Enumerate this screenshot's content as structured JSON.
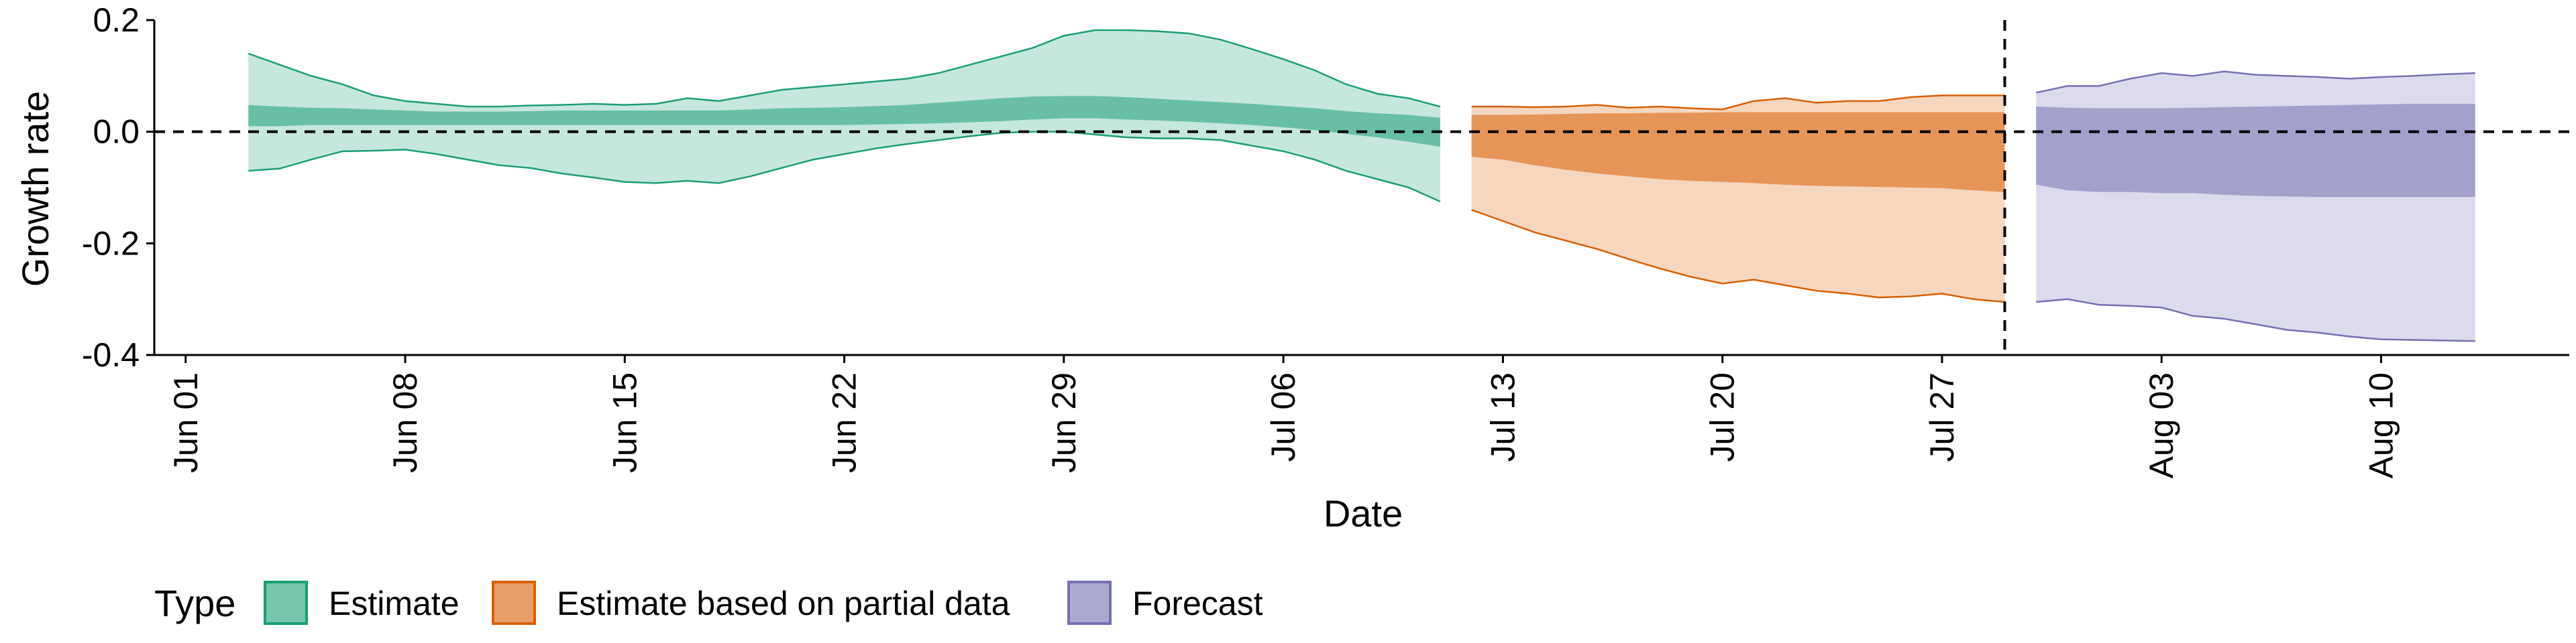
{
  "chart_data": {
    "type": "area",
    "xlabel": "Date",
    "ylabel": "Growth rate",
    "ylim": [
      -0.4,
      0.2
    ],
    "yticks": [
      {
        "value": -0.4,
        "label": "-0.4"
      },
      {
        "value": -0.2,
        "label": "-0.2"
      },
      {
        "value": 0.0,
        "label": "0.0"
      },
      {
        "value": 0.2,
        "label": "0.2"
      }
    ],
    "xticks": [
      {
        "date": "2020-06-01",
        "label": "Jun 01"
      },
      {
        "date": "2020-06-08",
        "label": "Jun 08"
      },
      {
        "date": "2020-06-15",
        "label": "Jun 15"
      },
      {
        "date": "2020-06-22",
        "label": "Jun 22"
      },
      {
        "date": "2020-06-29",
        "label": "Jun 29"
      },
      {
        "date": "2020-07-06",
        "label": "Jul 06"
      },
      {
        "date": "2020-07-13",
        "label": "Jul 13"
      },
      {
        "date": "2020-07-20",
        "label": "Jul 20"
      },
      {
        "date": "2020-07-27",
        "label": "Jul 27"
      },
      {
        "date": "2020-08-03",
        "label": "Aug 03"
      },
      {
        "date": "2020-08-10",
        "label": "Aug 10"
      }
    ],
    "xlim": [
      "2020-05-31",
      "2020-08-16"
    ],
    "hline": 0.0,
    "vline": "2020-07-29",
    "grid": false,
    "legend": {
      "title": "Type",
      "position": "bottom-left"
    },
    "series": [
      {
        "name": "Estimate",
        "color": "#1b9e77",
        "points": [
          {
            "date": "2020-06-03",
            "lower90": -0.07,
            "lower50": 0.01,
            "upper50": 0.048,
            "upper90": 0.14
          },
          {
            "date": "2020-06-04",
            "lower90": -0.066,
            "lower50": 0.01,
            "upper50": 0.045,
            "upper90": 0.12
          },
          {
            "date": "2020-06-05",
            "lower90": -0.05,
            "lower50": 0.012,
            "upper50": 0.043,
            "upper90": 0.1
          },
          {
            "date": "2020-06-06",
            "lower90": -0.035,
            "lower50": 0.012,
            "upper50": 0.042,
            "upper90": 0.085
          },
          {
            "date": "2020-06-07",
            "lower90": -0.034,
            "lower50": 0.012,
            "upper50": 0.04,
            "upper90": 0.065
          },
          {
            "date": "2020-06-08",
            "lower90": -0.032,
            "lower50": 0.012,
            "upper50": 0.038,
            "upper90": 0.055
          },
          {
            "date": "2020-06-09",
            "lower90": -0.04,
            "lower50": 0.012,
            "upper50": 0.036,
            "upper90": 0.05
          },
          {
            "date": "2020-06-10",
            "lower90": -0.05,
            "lower50": 0.012,
            "upper50": 0.036,
            "upper90": 0.045
          },
          {
            "date": "2020-06-11",
            "lower90": -0.06,
            "lower50": 0.012,
            "upper50": 0.036,
            "upper90": 0.045
          },
          {
            "date": "2020-06-12",
            "lower90": -0.065,
            "lower50": 0.012,
            "upper50": 0.037,
            "upper90": 0.047
          },
          {
            "date": "2020-06-13",
            "lower90": -0.075,
            "lower50": 0.012,
            "upper50": 0.038,
            "upper90": 0.048
          },
          {
            "date": "2020-06-14",
            "lower90": -0.082,
            "lower50": 0.012,
            "upper50": 0.038,
            "upper90": 0.05
          },
          {
            "date": "2020-06-15",
            "lower90": -0.09,
            "lower50": 0.012,
            "upper50": 0.038,
            "upper90": 0.048
          },
          {
            "date": "2020-06-16",
            "lower90": -0.092,
            "lower50": 0.012,
            "upper50": 0.038,
            "upper90": 0.05
          },
          {
            "date": "2020-06-17",
            "lower90": -0.088,
            "lower50": 0.012,
            "upper50": 0.038,
            "upper90": 0.06
          },
          {
            "date": "2020-06-18",
            "lower90": -0.092,
            "lower50": 0.012,
            "upper50": 0.038,
            "upper90": 0.055
          },
          {
            "date": "2020-06-19",
            "lower90": -0.08,
            "lower50": 0.012,
            "upper50": 0.04,
            "upper90": 0.065
          },
          {
            "date": "2020-06-20",
            "lower90": -0.065,
            "lower50": 0.012,
            "upper50": 0.042,
            "upper90": 0.075
          },
          {
            "date": "2020-06-21",
            "lower90": -0.05,
            "lower50": 0.012,
            "upper50": 0.043,
            "upper90": 0.08
          },
          {
            "date": "2020-06-22",
            "lower90": -0.04,
            "lower50": 0.012,
            "upper50": 0.044,
            "upper90": 0.085
          },
          {
            "date": "2020-06-23",
            "lower90": -0.03,
            "lower50": 0.013,
            "upper50": 0.046,
            "upper90": 0.09
          },
          {
            "date": "2020-06-24",
            "lower90": -0.022,
            "lower50": 0.014,
            "upper50": 0.048,
            "upper90": 0.095
          },
          {
            "date": "2020-06-25",
            "lower90": -0.015,
            "lower50": 0.015,
            "upper50": 0.052,
            "upper90": 0.105
          },
          {
            "date": "2020-06-26",
            "lower90": -0.008,
            "lower50": 0.017,
            "upper50": 0.056,
            "upper90": 0.12
          },
          {
            "date": "2020-06-27",
            "lower90": -0.002,
            "lower50": 0.019,
            "upper50": 0.06,
            "upper90": 0.135
          },
          {
            "date": "2020-06-28",
            "lower90": 0.0,
            "lower50": 0.022,
            "upper50": 0.063,
            "upper90": 0.15
          },
          {
            "date": "2020-06-29",
            "lower90": 0.0,
            "lower50": 0.024,
            "upper50": 0.064,
            "upper90": 0.172
          },
          {
            "date": "2020-06-30",
            "lower90": -0.005,
            "lower50": 0.024,
            "upper50": 0.064,
            "upper90": 0.182
          },
          {
            "date": "2020-07-01",
            "lower90": -0.01,
            "lower50": 0.022,
            "upper50": 0.062,
            "upper90": 0.182
          },
          {
            "date": "2020-07-02",
            "lower90": -0.012,
            "lower50": 0.02,
            "upper50": 0.059,
            "upper90": 0.18
          },
          {
            "date": "2020-07-03",
            "lower90": -0.012,
            "lower50": 0.018,
            "upper50": 0.056,
            "upper90": 0.176
          },
          {
            "date": "2020-07-04",
            "lower90": -0.015,
            "lower50": 0.015,
            "upper50": 0.053,
            "upper90": 0.165
          },
          {
            "date": "2020-07-05",
            "lower90": -0.025,
            "lower50": 0.012,
            "upper50": 0.05,
            "upper90": 0.148
          },
          {
            "date": "2020-07-06",
            "lower90": -0.035,
            "lower50": 0.008,
            "upper50": 0.046,
            "upper90": 0.13
          },
          {
            "date": "2020-07-07",
            "lower90": -0.05,
            "lower50": 0.003,
            "upper50": 0.042,
            "upper90": 0.11
          },
          {
            "date": "2020-07-08",
            "lower90": -0.07,
            "lower50": -0.004,
            "upper50": 0.037,
            "upper90": 0.085
          },
          {
            "date": "2020-07-09",
            "lower90": -0.085,
            "lower50": -0.01,
            "upper50": 0.033,
            "upper90": 0.068
          },
          {
            "date": "2020-07-10",
            "lower90": -0.1,
            "lower50": -0.018,
            "upper50": 0.03,
            "upper90": 0.06
          },
          {
            "date": "2020-07-11",
            "lower90": -0.125,
            "lower50": -0.027,
            "upper50": 0.025,
            "upper90": 0.045
          }
        ]
      },
      {
        "name": "Estimate based on partial data",
        "color": "#d95f02",
        "points": [
          {
            "date": "2020-07-12",
            "lower90": -0.14,
            "lower50": -0.045,
            "upper50": 0.03,
            "upper90": 0.045
          },
          {
            "date": "2020-07-13",
            "lower90": -0.16,
            "lower50": -0.05,
            "upper50": 0.03,
            "upper90": 0.045
          },
          {
            "date": "2020-07-14",
            "lower90": -0.18,
            "lower50": -0.06,
            "upper50": 0.031,
            "upper90": 0.044
          },
          {
            "date": "2020-07-15",
            "lower90": -0.195,
            "lower50": -0.068,
            "upper50": 0.032,
            "upper90": 0.045
          },
          {
            "date": "2020-07-16",
            "lower90": -0.21,
            "lower50": -0.075,
            "upper50": 0.033,
            "upper90": 0.048
          },
          {
            "date": "2020-07-17",
            "lower90": -0.228,
            "lower50": -0.08,
            "upper50": 0.033,
            "upper90": 0.043
          },
          {
            "date": "2020-07-18",
            "lower90": -0.245,
            "lower50": -0.085,
            "upper50": 0.034,
            "upper90": 0.045
          },
          {
            "date": "2020-07-19",
            "lower90": -0.26,
            "lower50": -0.088,
            "upper50": 0.034,
            "upper90": 0.042
          },
          {
            "date": "2020-07-20",
            "lower90": -0.272,
            "lower50": -0.09,
            "upper50": 0.035,
            "upper90": 0.04
          },
          {
            "date": "2020-07-21",
            "lower90": -0.265,
            "lower50": -0.092,
            "upper50": 0.035,
            "upper90": 0.055
          },
          {
            "date": "2020-07-22",
            "lower90": -0.275,
            "lower50": -0.095,
            "upper50": 0.035,
            "upper90": 0.06
          },
          {
            "date": "2020-07-23",
            "lower90": -0.285,
            "lower50": -0.097,
            "upper50": 0.035,
            "upper90": 0.052
          },
          {
            "date": "2020-07-24",
            "lower90": -0.29,
            "lower50": -0.098,
            "upper50": 0.035,
            "upper90": 0.055
          },
          {
            "date": "2020-07-25",
            "lower90": -0.297,
            "lower50": -0.099,
            "upper50": 0.035,
            "upper90": 0.055
          },
          {
            "date": "2020-07-26",
            "lower90": -0.295,
            "lower50": -0.1,
            "upper50": 0.035,
            "upper90": 0.062
          },
          {
            "date": "2020-07-27",
            "lower90": -0.29,
            "lower50": -0.101,
            "upper50": 0.035,
            "upper90": 0.065
          },
          {
            "date": "2020-07-28",
            "lower90": -0.3,
            "lower50": -0.105,
            "upper50": 0.035,
            "upper90": 0.065
          },
          {
            "date": "2020-07-29",
            "lower90": -0.305,
            "lower50": -0.108,
            "upper50": 0.035,
            "upper90": 0.065
          }
        ]
      },
      {
        "name": "Forecast",
        "color": "#7570b3",
        "points": [
          {
            "date": "2020-07-30",
            "lower90": -0.305,
            "lower50": -0.095,
            "upper50": 0.045,
            "upper90": 0.07
          },
          {
            "date": "2020-07-31",
            "lower90": -0.3,
            "lower50": -0.105,
            "upper50": 0.043,
            "upper90": 0.082
          },
          {
            "date": "2020-08-01",
            "lower90": -0.31,
            "lower50": -0.108,
            "upper50": 0.042,
            "upper90": 0.082
          },
          {
            "date": "2020-08-02",
            "lower90": -0.312,
            "lower50": -0.108,
            "upper50": 0.042,
            "upper90": 0.095
          },
          {
            "date": "2020-08-03",
            "lower90": -0.315,
            "lower50": -0.11,
            "upper50": 0.042,
            "upper90": 0.105
          },
          {
            "date": "2020-08-04",
            "lower90": -0.33,
            "lower50": -0.11,
            "upper50": 0.043,
            "upper90": 0.1
          },
          {
            "date": "2020-08-05",
            "lower90": -0.335,
            "lower50": -0.113,
            "upper50": 0.044,
            "upper90": 0.108
          },
          {
            "date": "2020-08-06",
            "lower90": -0.345,
            "lower50": -0.115,
            "upper50": 0.045,
            "upper90": 0.102
          },
          {
            "date": "2020-08-07",
            "lower90": -0.355,
            "lower50": -0.116,
            "upper50": 0.046,
            "upper90": 0.1
          },
          {
            "date": "2020-08-08",
            "lower90": -0.36,
            "lower50": -0.117,
            "upper50": 0.047,
            "upper90": 0.098
          },
          {
            "date": "2020-08-09",
            "lower90": -0.367,
            "lower50": -0.117,
            "upper50": 0.048,
            "upper90": 0.095
          },
          {
            "date": "2020-08-10",
            "lower90": -0.372,
            "lower50": -0.117,
            "upper50": 0.049,
            "upper90": 0.098
          },
          {
            "date": "2020-08-11",
            "lower90": -0.373,
            "lower50": -0.117,
            "upper50": 0.05,
            "upper90": 0.1
          },
          {
            "date": "2020-08-12",
            "lower90": -0.374,
            "lower50": -0.117,
            "upper50": 0.05,
            "upper90": 0.103
          },
          {
            "date": "2020-08-13",
            "lower90": -0.375,
            "lower50": -0.117,
            "upper50": 0.05,
            "upper90": 0.105
          }
        ]
      }
    ]
  }
}
